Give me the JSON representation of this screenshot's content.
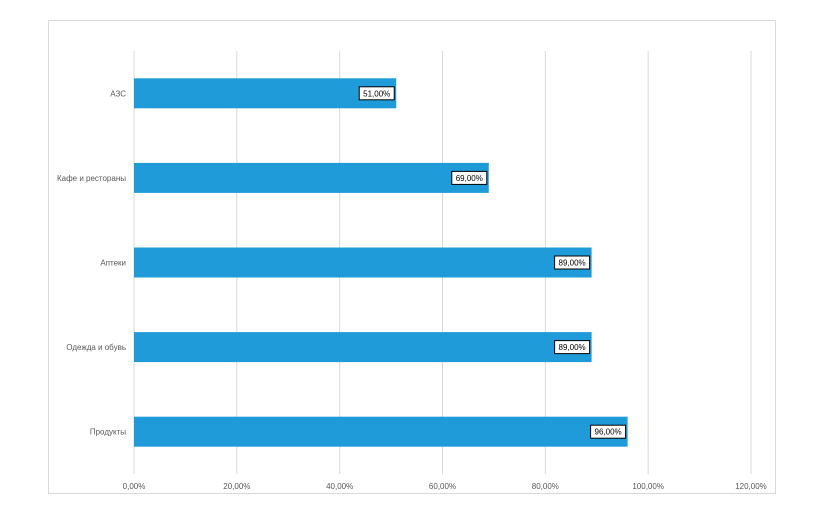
{
  "chart_data": {
    "type": "bar",
    "orientation": "horizontal",
    "categories": [
      "АЗС",
      "Кафе и рестораны",
      "Аптеки",
      "Одежда и обувь",
      "Продукты"
    ],
    "values": [
      51,
      69,
      89,
      89,
      96
    ],
    "data_labels": [
      "51,00%",
      "69,00%",
      "89,00%",
      "89,00%",
      "96,00%"
    ],
    "x_ticks": [
      "0,00%",
      "20,00%",
      "40,00%",
      "60,00%",
      "80,00%",
      "100,00%",
      "120,00%"
    ],
    "xlim": [
      0,
      120
    ],
    "title": "",
    "xlabel": "",
    "ylabel": "",
    "grid": "vertical",
    "legend": "none",
    "colors": {
      "bar": "#1f9bd9",
      "grid": "#d9d9d9",
      "text": "#595959"
    }
  }
}
